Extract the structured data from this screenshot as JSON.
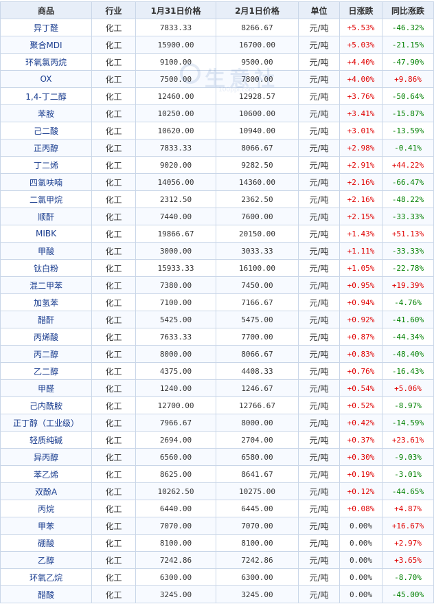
{
  "table": {
    "headers": {
      "name": "商品",
      "industry": "行业",
      "price_a": "1月31日价格",
      "price_b": "2月1日价格",
      "unit": "单位",
      "daily": "日涨跌",
      "yoy": "同比涨跌"
    },
    "rows": [
      {
        "name": "异丁醛",
        "industry": "化工",
        "price_a": "7833.33",
        "price_b": "8266.67",
        "unit": "元/吨",
        "daily": "+5.53%",
        "yoy": "-46.32%"
      },
      {
        "name": "聚合MDI",
        "industry": "化工",
        "price_a": "15900.00",
        "price_b": "16700.00",
        "unit": "元/吨",
        "daily": "+5.03%",
        "yoy": "-21.15%"
      },
      {
        "name": "环氧氯丙烷",
        "industry": "化工",
        "price_a": "9100.00",
        "price_b": "9500.00",
        "unit": "元/吨",
        "daily": "+4.40%",
        "yoy": "-47.90%"
      },
      {
        "name": "OX",
        "industry": "化工",
        "price_a": "7500.00",
        "price_b": "7800.00",
        "unit": "元/吨",
        "daily": "+4.00%",
        "yoy": "+9.86%"
      },
      {
        "name": "1,4-丁二醇",
        "industry": "化工",
        "price_a": "12460.00",
        "price_b": "12928.57",
        "unit": "元/吨",
        "daily": "+3.76%",
        "yoy": "-50.64%"
      },
      {
        "name": "苯胺",
        "industry": "化工",
        "price_a": "10250.00",
        "price_b": "10600.00",
        "unit": "元/吨",
        "daily": "+3.41%",
        "yoy": "-15.87%"
      },
      {
        "name": "己二酸",
        "industry": "化工",
        "price_a": "10620.00",
        "price_b": "10940.00",
        "unit": "元/吨",
        "daily": "+3.01%",
        "yoy": "-13.59%"
      },
      {
        "name": "正丙醇",
        "industry": "化工",
        "price_a": "7833.33",
        "price_b": "8066.67",
        "unit": "元/吨",
        "daily": "+2.98%",
        "yoy": "-0.41%"
      },
      {
        "name": "丁二烯",
        "industry": "化工",
        "price_a": "9020.00",
        "price_b": "9282.50",
        "unit": "元/吨",
        "daily": "+2.91%",
        "yoy": "+44.22%"
      },
      {
        "name": "四氢呋喃",
        "industry": "化工",
        "price_a": "14056.00",
        "price_b": "14360.00",
        "unit": "元/吨",
        "daily": "+2.16%",
        "yoy": "-66.47%"
      },
      {
        "name": "二氯甲烷",
        "industry": "化工",
        "price_a": "2312.50",
        "price_b": "2362.50",
        "unit": "元/吨",
        "daily": "+2.16%",
        "yoy": "-48.22%"
      },
      {
        "name": "顺酐",
        "industry": "化工",
        "price_a": "7440.00",
        "price_b": "7600.00",
        "unit": "元/吨",
        "daily": "+2.15%",
        "yoy": "-33.33%"
      },
      {
        "name": "MIBK",
        "industry": "化工",
        "price_a": "19866.67",
        "price_b": "20150.00",
        "unit": "元/吨",
        "daily": "+1.43%",
        "yoy": "+51.13%"
      },
      {
        "name": "甲酸",
        "industry": "化工",
        "price_a": "3000.00",
        "price_b": "3033.33",
        "unit": "元/吨",
        "daily": "+1.11%",
        "yoy": "-33.33%"
      },
      {
        "name": "钛白粉",
        "industry": "化工",
        "price_a": "15933.33",
        "price_b": "16100.00",
        "unit": "元/吨",
        "daily": "+1.05%",
        "yoy": "-22.78%"
      },
      {
        "name": "混二甲苯",
        "industry": "化工",
        "price_a": "7380.00",
        "price_b": "7450.00",
        "unit": "元/吨",
        "daily": "+0.95%",
        "yoy": "+19.39%"
      },
      {
        "name": "加氢苯",
        "industry": "化工",
        "price_a": "7100.00",
        "price_b": "7166.67",
        "unit": "元/吨",
        "daily": "+0.94%",
        "yoy": "-4.76%"
      },
      {
        "name": "醋酐",
        "industry": "化工",
        "price_a": "5425.00",
        "price_b": "5475.00",
        "unit": "元/吨",
        "daily": "+0.92%",
        "yoy": "-41.60%"
      },
      {
        "name": "丙烯酸",
        "industry": "化工",
        "price_a": "7633.33",
        "price_b": "7700.00",
        "unit": "元/吨",
        "daily": "+0.87%",
        "yoy": "-44.34%"
      },
      {
        "name": "丙二醇",
        "industry": "化工",
        "price_a": "8000.00",
        "price_b": "8066.67",
        "unit": "元/吨",
        "daily": "+0.83%",
        "yoy": "-48.40%"
      },
      {
        "name": "乙二醇",
        "industry": "化工",
        "price_a": "4375.00",
        "price_b": "4408.33",
        "unit": "元/吨",
        "daily": "+0.76%",
        "yoy": "-16.43%"
      },
      {
        "name": "甲醛",
        "industry": "化工",
        "price_a": "1240.00",
        "price_b": "1246.67",
        "unit": "元/吨",
        "daily": "+0.54%",
        "yoy": "+5.06%"
      },
      {
        "name": "己内酰胺",
        "industry": "化工",
        "price_a": "12700.00",
        "price_b": "12766.67",
        "unit": "元/吨",
        "daily": "+0.52%",
        "yoy": "-8.97%"
      },
      {
        "name": "正丁醇（工业级）",
        "industry": "化工",
        "price_a": "7966.67",
        "price_b": "8000.00",
        "unit": "元/吨",
        "daily": "+0.42%",
        "yoy": "-14.59%"
      },
      {
        "name": "轻质纯碱",
        "industry": "化工",
        "price_a": "2694.00",
        "price_b": "2704.00",
        "unit": "元/吨",
        "daily": "+0.37%",
        "yoy": "+23.61%"
      },
      {
        "name": "异丙醇",
        "industry": "化工",
        "price_a": "6560.00",
        "price_b": "6580.00",
        "unit": "元/吨",
        "daily": "+0.30%",
        "yoy": "-9.03%"
      },
      {
        "name": "苯乙烯",
        "industry": "化工",
        "price_a": "8625.00",
        "price_b": "8641.67",
        "unit": "元/吨",
        "daily": "+0.19%",
        "yoy": "-3.01%"
      },
      {
        "name": "双酚A",
        "industry": "化工",
        "price_a": "10262.50",
        "price_b": "10275.00",
        "unit": "元/吨",
        "daily": "+0.12%",
        "yoy": "-44.65%"
      },
      {
        "name": "丙烷",
        "industry": "化工",
        "price_a": "6440.00",
        "price_b": "6445.00",
        "unit": "元/吨",
        "daily": "+0.08%",
        "yoy": "+4.87%"
      },
      {
        "name": "甲苯",
        "industry": "化工",
        "price_a": "7070.00",
        "price_b": "7070.00",
        "unit": "元/吨",
        "daily": "0.00%",
        "yoy": "+16.67%"
      },
      {
        "name": "硼酸",
        "industry": "化工",
        "price_a": "8100.00",
        "price_b": "8100.00",
        "unit": "元/吨",
        "daily": "0.00%",
        "yoy": "+2.97%"
      },
      {
        "name": "乙醇",
        "industry": "化工",
        "price_a": "7242.86",
        "price_b": "7242.86",
        "unit": "元/吨",
        "daily": "0.00%",
        "yoy": "+3.65%"
      },
      {
        "name": "环氧乙烷",
        "industry": "化工",
        "price_a": "6300.00",
        "price_b": "6300.00",
        "unit": "元/吨",
        "daily": "0.00%",
        "yoy": "-8.70%"
      },
      {
        "name": "醋酸",
        "industry": "化工",
        "price_a": "3245.00",
        "price_b": "3245.00",
        "unit": "元/吨",
        "daily": "0.00%",
        "yoy": "-45.00%"
      }
    ]
  },
  "colors": {
    "up": "#e00000",
    "down": "#008000",
    "flat": "#333333",
    "header_bg": "#e7eef8",
    "border": "#c9d6e8",
    "name_link": "#1a3d8f"
  },
  "watermark": {
    "text": "生意社",
    "sub": "100ppi.com"
  }
}
